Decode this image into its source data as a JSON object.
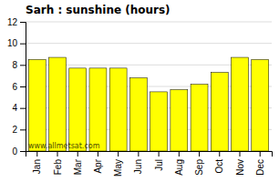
{
  "chart_data": {
    "type": "bar",
    "title": "Sarh : sunshine (hours)",
    "categories": [
      "Jan",
      "Feb",
      "Mar",
      "Apr",
      "May",
      "Jun",
      "Jul",
      "Aug",
      "Sep",
      "Oct",
      "Nov",
      "Dec"
    ],
    "values": [
      8.5,
      8.7,
      7.7,
      7.7,
      7.7,
      6.8,
      5.5,
      5.7,
      6.2,
      7.3,
      8.7,
      8.5
    ],
    "color": "#ffff00",
    "ylim": [
      0,
      12
    ],
    "yticks": [
      0,
      2,
      4,
      6,
      8,
      10,
      12
    ],
    "grid": true,
    "annotations": [
      "www.allmetsat.com"
    ]
  }
}
